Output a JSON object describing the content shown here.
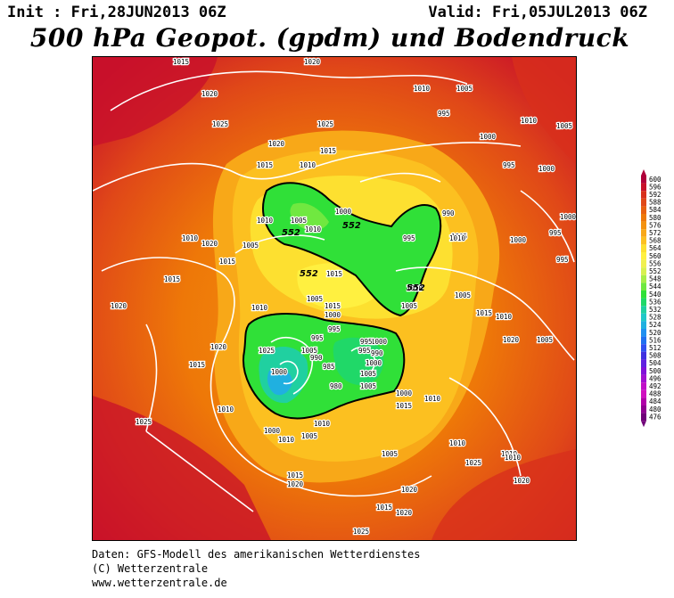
{
  "header": {
    "init": "Init : Fri,28JUN2013 06Z",
    "valid": "Valid: Fri,05JUL2013 06Z",
    "title": "500 hPa Geopot. (gpdm) und Bodendruck (hPa)"
  },
  "footer": {
    "line1": "Daten: GFS-Modell des amerikanischen Wetterdienstes",
    "line2": "(C) Wetterzentrale",
    "line3": "www.wetterzentrale.de"
  },
  "colorbar": {
    "levels": [
      "600",
      "596",
      "592",
      "588",
      "584",
      "580",
      "576",
      "572",
      "568",
      "564",
      "560",
      "556",
      "552",
      "548",
      "544",
      "540",
      "536",
      "532",
      "528",
      "524",
      "520",
      "516",
      "512",
      "508",
      "504",
      "500",
      "496",
      "492",
      "488",
      "484",
      "480",
      "476"
    ],
    "colors": [
      "#b0003a",
      "#c8102a",
      "#d8301c",
      "#e04818",
      "#e86010",
      "#ee7808",
      "#f49210",
      "#f8a818",
      "#fcc020",
      "#fde030",
      "#fff040",
      "#f0f050",
      "#d8f050",
      "#a8ee48",
      "#70e840",
      "#30e038",
      "#20d868",
      "#20d0a0",
      "#20c8c8",
      "#20b0e0",
      "#2090f0",
      "#2070f0",
      "#3050f0",
      "#4030e0",
      "#6020e0",
      "#8010d8",
      "#a010d0",
      "#c010c8",
      "#d010c0",
      "#b000a8",
      "#900090",
      "#700078"
    ]
  },
  "map": {
    "isobar_labels": [
      {
        "text": "1015"
      },
      {
        "text": "1020"
      },
      {
        "text": "1020"
      },
      {
        "text": "1025"
      },
      {
        "text": "1010"
      },
      {
        "text": "1005"
      },
      {
        "text": "995"
      },
      {
        "text": "1025"
      },
      {
        "text": "1020"
      },
      {
        "text": "1015"
      },
      {
        "text": "1010"
      },
      {
        "text": "1015"
      },
      {
        "text": "1005"
      },
      {
        "text": "1000"
      },
      {
        "text": "1010"
      },
      {
        "text": "995"
      },
      {
        "text": "1000"
      },
      {
        "text": "995"
      },
      {
        "text": "995"
      },
      {
        "text": "1000"
      },
      {
        "text": "1020"
      },
      {
        "text": "1015"
      },
      {
        "text": "1005"
      },
      {
        "text": "1010"
      },
      {
        "text": "1015"
      },
      {
        "text": "1010"
      },
      {
        "text": "1005"
      },
      {
        "text": "1000"
      },
      {
        "text": "990"
      },
      {
        "text": "995"
      },
      {
        "text": "1000"
      },
      {
        "text": "1005"
      },
      {
        "text": "1020"
      },
      {
        "text": "1010"
      },
      {
        "text": "1015"
      },
      {
        "text": "1005"
      },
      {
        "text": "1010"
      },
      {
        "text": "1005"
      },
      {
        "text": "1000"
      },
      {
        "text": "995"
      },
      {
        "text": "1010"
      },
      {
        "text": "1015"
      },
      {
        "text": "1020"
      },
      {
        "text": "1005"
      },
      {
        "text": "1005"
      },
      {
        "text": "1010"
      },
      {
        "text": "1015"
      },
      {
        "text": "1010"
      },
      {
        "text": "1010"
      },
      {
        "text": "1005"
      },
      {
        "text": "1000"
      },
      {
        "text": "990"
      },
      {
        "text": "985"
      },
      {
        "text": "980"
      },
      {
        "text": "995"
      },
      {
        "text": "1000"
      },
      {
        "text": "995"
      },
      {
        "text": "1005"
      },
      {
        "text": "1015"
      },
      {
        "text": "1020"
      },
      {
        "text": "1025"
      },
      {
        "text": "1010"
      },
      {
        "text": "1000"
      },
      {
        "text": "1005"
      },
      {
        "text": "1010"
      },
      {
        "text": "1015"
      },
      {
        "text": "1020"
      },
      {
        "text": "1025"
      },
      {
        "text": "1025"
      },
      {
        "text": "1020"
      },
      {
        "text": "1015"
      },
      {
        "text": "1020"
      },
      {
        "text": "1010"
      },
      {
        "text": "1010"
      },
      {
        "text": "1000"
      },
      {
        "text": "1005"
      },
      {
        "text": "995"
      },
      {
        "text": "990"
      },
      {
        "text": "1000"
      },
      {
        "text": "1005"
      },
      {
        "text": "1010"
      },
      {
        "text": "1015"
      },
      {
        "text": "1025"
      },
      {
        "text": "1020"
      },
      {
        "text": "1010"
      }
    ],
    "height_labels": [
      {
        "text": "552"
      },
      {
        "text": "552"
      },
      {
        "text": "552"
      },
      {
        "text": "552"
      }
    ]
  }
}
